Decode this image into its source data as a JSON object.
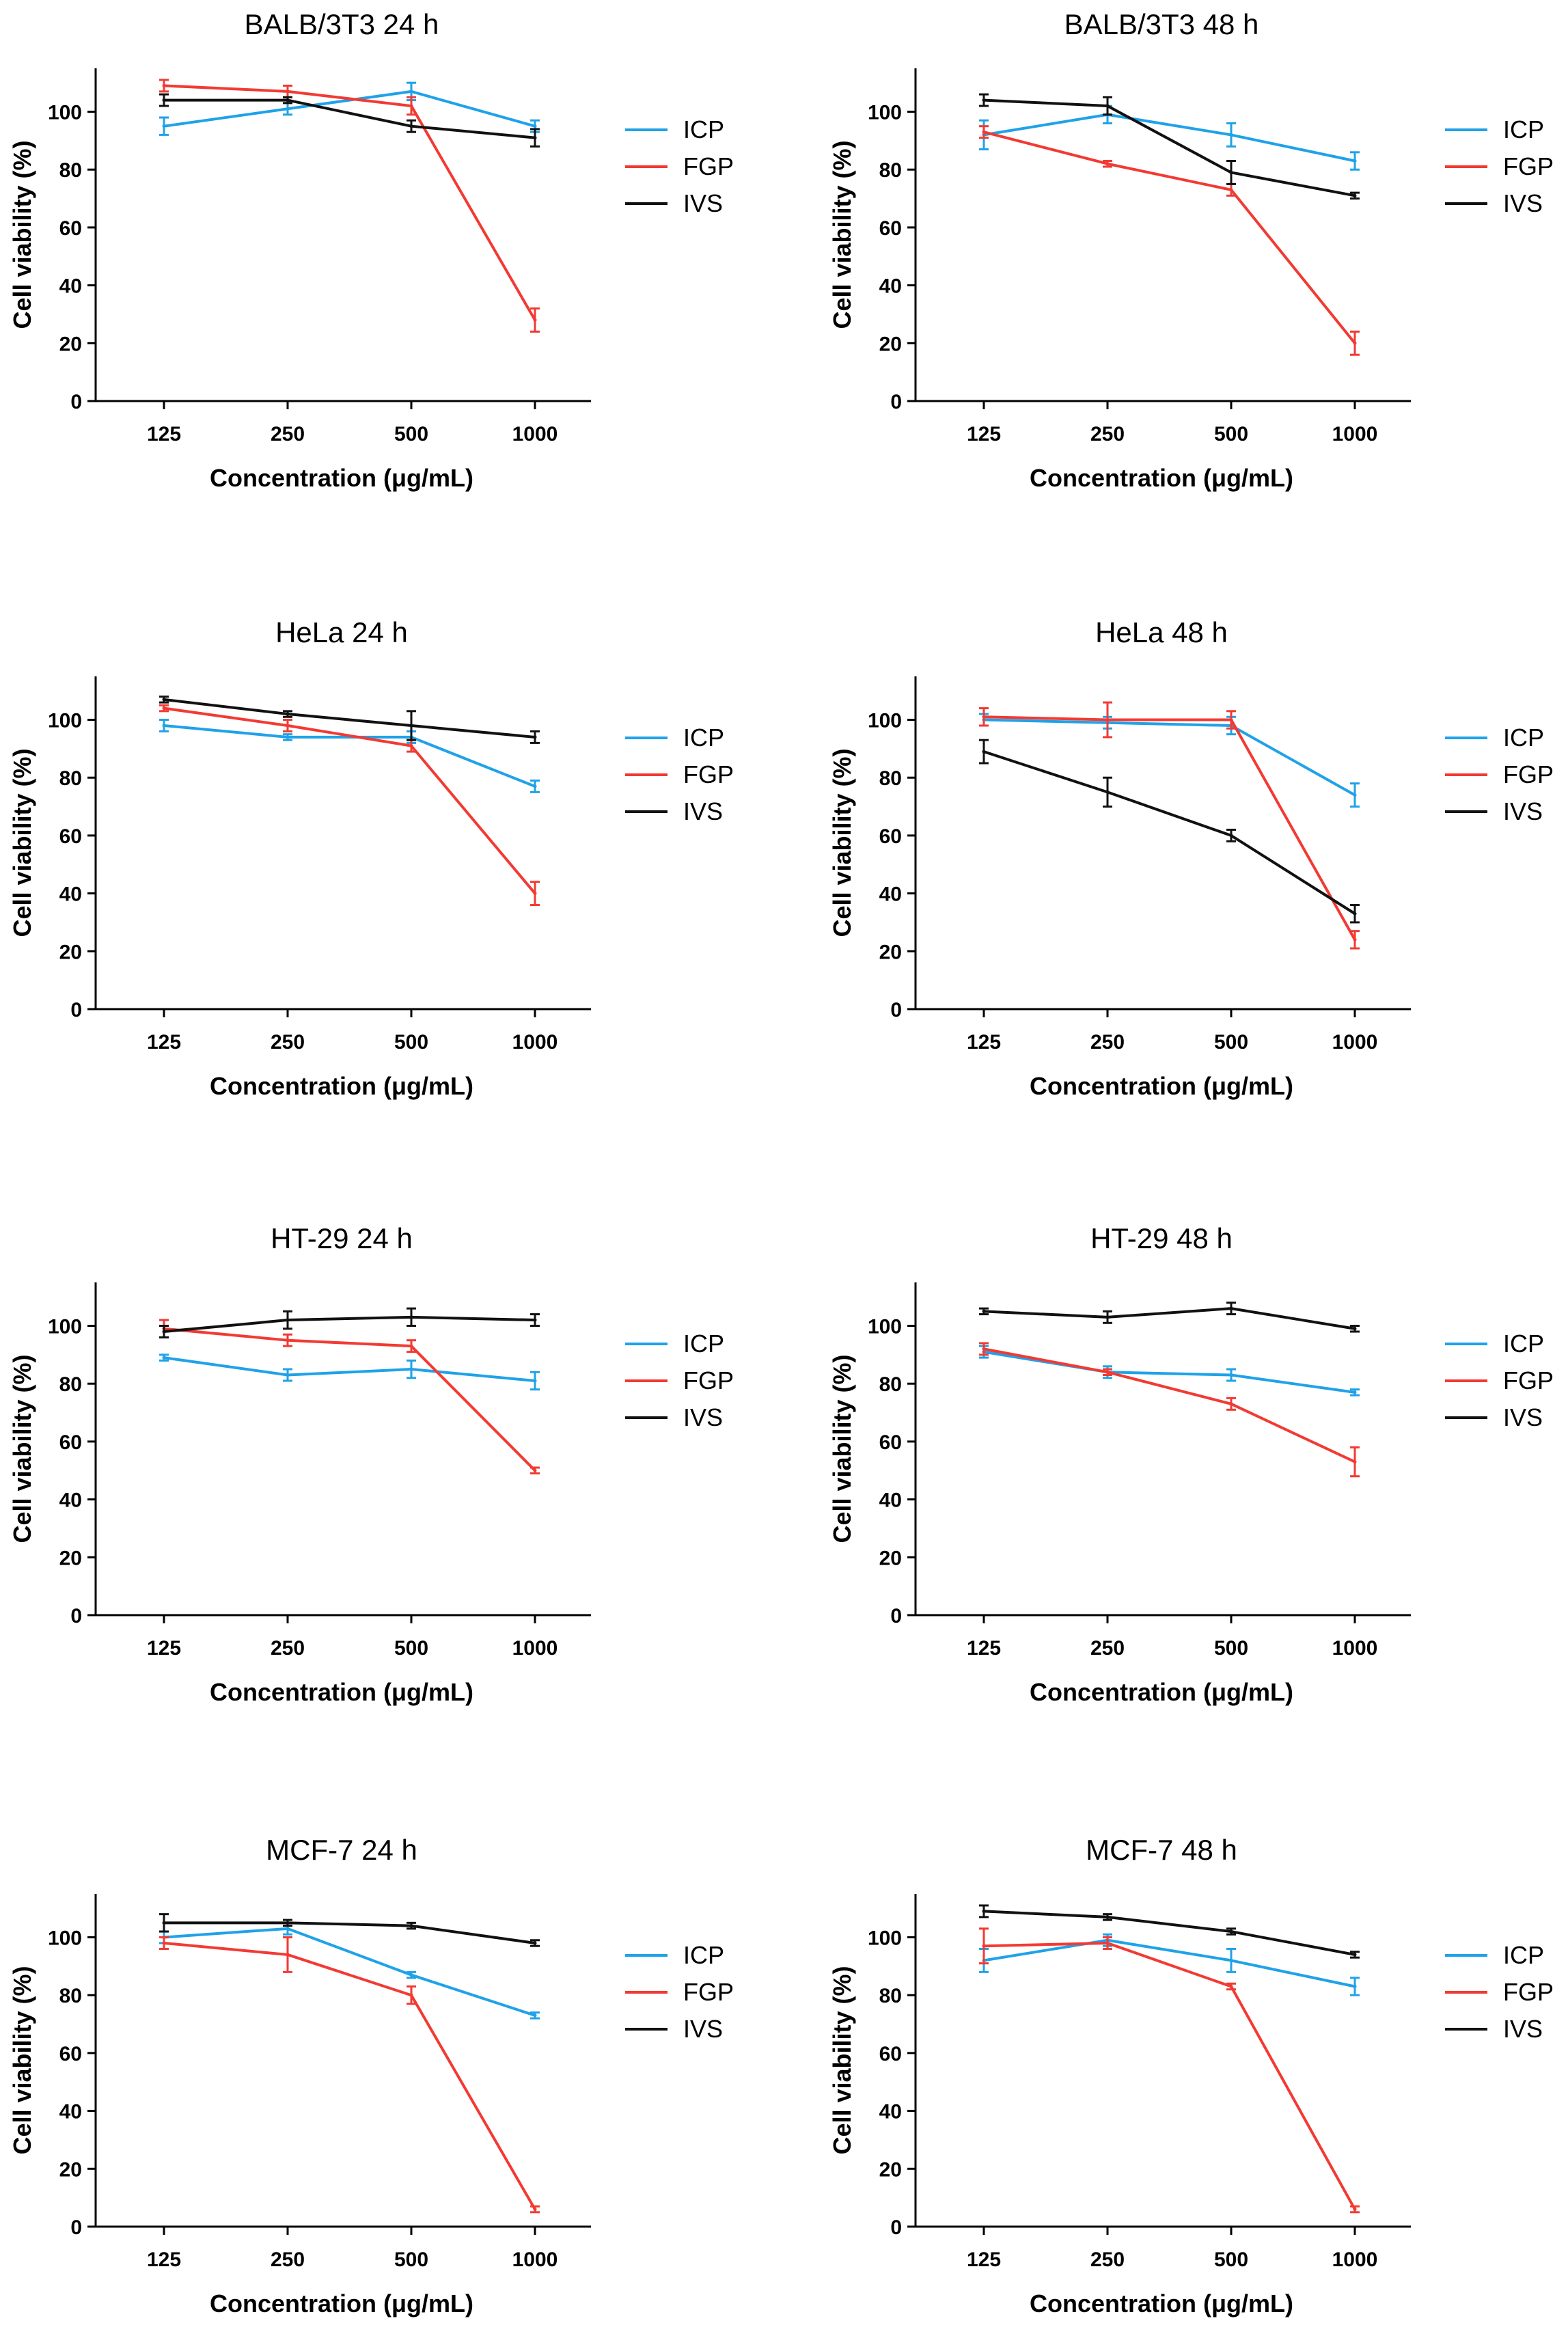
{
  "figure": {
    "series_names": [
      "ICP",
      "FGP",
      "IVS"
    ],
    "series_colors": {
      "ICP": "#1FA2E8",
      "FGP": "#F23A33",
      "IVS": "#111111"
    }
  },
  "chart_data": [
    {
      "type": "line",
      "title": "BALB/3T3 24 h",
      "xlabel": "Concentration (μg/mL)",
      "ylabel": "Cell viability (%)",
      "categories": [
        "125",
        "250",
        "500",
        "1000"
      ],
      "ylim": [
        0,
        115
      ],
      "yticks": [
        0,
        20,
        40,
        60,
        80,
        100
      ],
      "legend": "right",
      "series": [
        {
          "name": "ICP",
          "values": [
            95,
            101,
            107,
            95
          ],
          "errors": [
            3,
            2,
            3,
            2
          ]
        },
        {
          "name": "FGP",
          "values": [
            109,
            107,
            102,
            28
          ],
          "errors": [
            2,
            2,
            3,
            4
          ]
        },
        {
          "name": "IVS",
          "values": [
            104,
            104,
            95,
            91
          ],
          "errors": [
            2,
            1,
            2,
            3
          ]
        }
      ]
    },
    {
      "type": "line",
      "title": "BALB/3T3 48 h",
      "xlabel": "Concentration (μg/mL)",
      "ylabel": "Cell viability (%)",
      "categories": [
        "125",
        "250",
        "500",
        "1000"
      ],
      "ylim": [
        0,
        115
      ],
      "yticks": [
        0,
        20,
        40,
        60,
        80,
        100
      ],
      "legend": "right",
      "series": [
        {
          "name": "ICP",
          "values": [
            92,
            99,
            92,
            83
          ],
          "errors": [
            5,
            3,
            4,
            3
          ]
        },
        {
          "name": "FGP",
          "values": [
            93,
            82,
            73,
            20
          ],
          "errors": [
            2,
            1,
            2,
            4
          ]
        },
        {
          "name": "IVS",
          "values": [
            104,
            102,
            79,
            71
          ],
          "errors": [
            2,
            3,
            4,
            1
          ]
        }
      ]
    },
    {
      "type": "line",
      "title": "HeLa 24 h",
      "xlabel": "Concentration (μg/mL)",
      "ylabel": "Cell viability (%)",
      "categories": [
        "125",
        "250",
        "500",
        "1000"
      ],
      "ylim": [
        0,
        115
      ],
      "yticks": [
        0,
        20,
        40,
        60,
        80,
        100
      ],
      "legend": "right",
      "series": [
        {
          "name": "ICP",
          "values": [
            98,
            94,
            94,
            77
          ],
          "errors": [
            2,
            1,
            2,
            2
          ]
        },
        {
          "name": "FGP",
          "values": [
            104,
            98,
            91,
            40
          ],
          "errors": [
            1,
            2,
            2,
            4
          ]
        },
        {
          "name": "IVS",
          "values": [
            107,
            102,
            98,
            94
          ],
          "errors": [
            1,
            1,
            5,
            2
          ]
        }
      ]
    },
    {
      "type": "line",
      "title": "HeLa 48 h",
      "xlabel": "Concentration (μg/mL)",
      "ylabel": "Cell viability (%)",
      "categories": [
        "125",
        "250",
        "500",
        "1000"
      ],
      "ylim": [
        0,
        115
      ],
      "yticks": [
        0,
        20,
        40,
        60,
        80,
        100
      ],
      "legend": "right",
      "series": [
        {
          "name": "ICP",
          "values": [
            100,
            99,
            98,
            74
          ],
          "errors": [
            2,
            2,
            3,
            4
          ]
        },
        {
          "name": "FGP",
          "values": [
            101,
            100,
            100,
            24
          ],
          "errors": [
            3,
            6,
            3,
            3
          ]
        },
        {
          "name": "IVS",
          "values": [
            89,
            75,
            60,
            33
          ],
          "errors": [
            4,
            5,
            2,
            3
          ]
        }
      ]
    },
    {
      "type": "line",
      "title": "HT-29 24 h",
      "xlabel": "Concentration (μg/mL)",
      "ylabel": "Cell viability (%)",
      "categories": [
        "125",
        "250",
        "500",
        "1000"
      ],
      "ylim": [
        0,
        115
      ],
      "yticks": [
        0,
        20,
        40,
        60,
        80,
        100
      ],
      "legend": "right",
      "series": [
        {
          "name": "ICP",
          "values": [
            89,
            83,
            85,
            81
          ],
          "errors": [
            1,
            2,
            3,
            3
          ]
        },
        {
          "name": "FGP",
          "values": [
            99,
            95,
            93,
            50
          ],
          "errors": [
            3,
            2,
            2,
            1
          ]
        },
        {
          "name": "IVS",
          "values": [
            98,
            102,
            103,
            102
          ],
          "errors": [
            2,
            3,
            3,
            2
          ]
        }
      ]
    },
    {
      "type": "line",
      "title": "HT-29 48 h",
      "xlabel": "Concentration (μg/mL)",
      "ylabel": "Cell viability (%)",
      "categories": [
        "125",
        "250",
        "500",
        "1000"
      ],
      "ylim": [
        0,
        115
      ],
      "yticks": [
        0,
        20,
        40,
        60,
        80,
        100
      ],
      "legend": "right",
      "series": [
        {
          "name": "ICP",
          "values": [
            91,
            84,
            83,
            77
          ],
          "errors": [
            2,
            2,
            2,
            1
          ]
        },
        {
          "name": "FGP",
          "values": [
            92,
            84,
            73,
            53
          ],
          "errors": [
            2,
            1,
            2,
            5
          ]
        },
        {
          "name": "IVS",
          "values": [
            105,
            103,
            106,
            99
          ],
          "errors": [
            1,
            2,
            2,
            1
          ]
        }
      ]
    },
    {
      "type": "line",
      "title": "MCF-7 24 h",
      "xlabel": "Concentration (μg/mL)",
      "ylabel": "Cell viability (%)",
      "categories": [
        "125",
        "250",
        "500",
        "1000"
      ],
      "ylim": [
        0,
        115
      ],
      "yticks": [
        0,
        20,
        40,
        60,
        80,
        100
      ],
      "legend": "right",
      "series": [
        {
          "name": "ICP",
          "values": [
            100,
            103,
            87,
            73
          ],
          "errors": [
            2,
            2,
            1,
            1
          ]
        },
        {
          "name": "FGP",
          "values": [
            98,
            94,
            80,
            6
          ],
          "errors": [
            2,
            6,
            3,
            1
          ]
        },
        {
          "name": "IVS",
          "values": [
            105,
            105,
            104,
            98
          ],
          "errors": [
            3,
            1,
            1,
            1
          ]
        }
      ]
    },
    {
      "type": "line",
      "title": "MCF-7 48 h",
      "xlabel": "Concentration (μg/mL)",
      "ylabel": "Cell viability (%)",
      "categories": [
        "125",
        "250",
        "500",
        "1000"
      ],
      "ylim": [
        0,
        115
      ],
      "yticks": [
        0,
        20,
        40,
        60,
        80,
        100
      ],
      "legend": "right",
      "series": [
        {
          "name": "ICP",
          "values": [
            92,
            99,
            92,
            83
          ],
          "errors": [
            4,
            2,
            4,
            3
          ]
        },
        {
          "name": "FGP",
          "values": [
            97,
            98,
            83,
            6
          ],
          "errors": [
            6,
            2,
            1,
            1
          ]
        },
        {
          "name": "IVS",
          "values": [
            109,
            107,
            102,
            94
          ],
          "errors": [
            2,
            1,
            1,
            1
          ]
        }
      ]
    }
  ]
}
